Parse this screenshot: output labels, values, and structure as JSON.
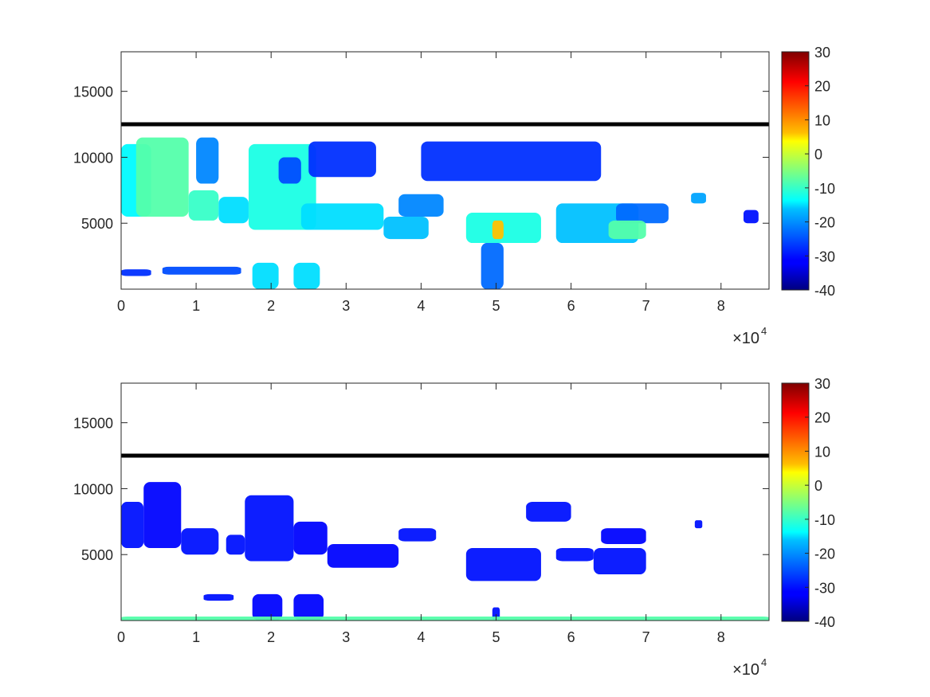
{
  "chart_data": [
    {
      "type": "heatmap",
      "panel": "top",
      "xlim": [
        0,
        86400
      ],
      "ylim": [
        0,
        18000
      ],
      "x_ticks": [
        0,
        10000,
        20000,
        30000,
        40000,
        50000,
        60000,
        70000,
        80000
      ],
      "x_tick_labels": [
        "0",
        "1",
        "2",
        "3",
        "4",
        "5",
        "6",
        "7",
        "8"
      ],
      "x_multiplier": {
        "base": "×10",
        "exponent": "4"
      },
      "y_ticks": [
        5000,
        10000,
        15000
      ],
      "y_tick_labels": [
        "5000",
        "10000",
        "15000"
      ],
      "reference_line_y": 12500,
      "colorbar": {
        "min": -40,
        "max": 30,
        "ticks": [
          "30",
          "20",
          "10",
          "0",
          "-10",
          "-20",
          "-30",
          "-40"
        ],
        "colormap": "jet"
      },
      "regions": [
        {
          "x": [
            0,
            4000
          ],
          "y": [
            5500,
            11000
          ],
          "value": -14
        },
        {
          "x": [
            2000,
            9000
          ],
          "y": [
            5500,
            11500
          ],
          "value": -8
        },
        {
          "x": [
            9000,
            13000
          ],
          "y": [
            5200,
            7500
          ],
          "value": -10
        },
        {
          "x": [
            10000,
            13000
          ],
          "y": [
            8000,
            11500
          ],
          "value": -22
        },
        {
          "x": [
            13000,
            17000
          ],
          "y": [
            5000,
            7000
          ],
          "value": -16
        },
        {
          "x": [
            17000,
            26000
          ],
          "y": [
            4500,
            11000
          ],
          "value": -12
        },
        {
          "x": [
            21000,
            24000
          ],
          "y": [
            8000,
            10000
          ],
          "value": -26
        },
        {
          "x": [
            25000,
            34000
          ],
          "y": [
            8500,
            11200
          ],
          "value": -28
        },
        {
          "x": [
            24000,
            35000
          ],
          "y": [
            4500,
            6500
          ],
          "value": -16
        },
        {
          "x": [
            35000,
            41000
          ],
          "y": [
            3800,
            5500
          ],
          "value": -18
        },
        {
          "x": [
            37000,
            43000
          ],
          "y": [
            5500,
            7200
          ],
          "value": -22
        },
        {
          "x": [
            40000,
            64000
          ],
          "y": [
            8200,
            11200
          ],
          "value": -28
        },
        {
          "x": [
            46000,
            56000
          ],
          "y": [
            3500,
            5800
          ],
          "value": -12
        },
        {
          "x": [
            48000,
            51000
          ],
          "y": [
            0,
            3500
          ],
          "value": -24
        },
        {
          "x": [
            49500,
            51000
          ],
          "y": [
            3800,
            5200
          ],
          "value": 8
        },
        {
          "x": [
            58000,
            69000
          ],
          "y": [
            3500,
            6500
          ],
          "value": -18
        },
        {
          "x": [
            66000,
            73000
          ],
          "y": [
            5000,
            6500
          ],
          "value": -24
        },
        {
          "x": [
            65000,
            70000
          ],
          "y": [
            3800,
            5200
          ],
          "value": -8
        },
        {
          "x": [
            0,
            4000
          ],
          "y": [
            1000,
            1500
          ],
          "value": -28
        },
        {
          "x": [
            5500,
            16000
          ],
          "y": [
            1100,
            1700
          ],
          "value": -26
        },
        {
          "x": [
            17500,
            21000
          ],
          "y": [
            0,
            2000
          ],
          "value": -16
        },
        {
          "x": [
            23000,
            26500
          ],
          "y": [
            0,
            2000
          ],
          "value": -16
        },
        {
          "x": [
            76000,
            78000
          ],
          "y": [
            6500,
            7300
          ],
          "value": -20
        },
        {
          "x": [
            83000,
            85000
          ],
          "y": [
            5000,
            6000
          ],
          "value": -30
        }
      ]
    },
    {
      "type": "heatmap",
      "panel": "bottom",
      "xlim": [
        0,
        86400
      ],
      "ylim": [
        0,
        18000
      ],
      "x_ticks": [
        0,
        10000,
        20000,
        30000,
        40000,
        50000,
        60000,
        70000,
        80000
      ],
      "x_tick_labels": [
        "0",
        "1",
        "2",
        "3",
        "4",
        "5",
        "6",
        "7",
        "8"
      ],
      "x_multiplier": {
        "base": "×10",
        "exponent": "4"
      },
      "y_ticks": [
        5000,
        10000,
        15000
      ],
      "y_tick_labels": [
        "5000",
        "10000",
        "15000"
      ],
      "reference_line_y": 12500,
      "colorbar": {
        "min": -40,
        "max": 30,
        "ticks": [
          "30",
          "20",
          "10",
          "0",
          "-10",
          "-20",
          "-30",
          "-40"
        ],
        "colormap": "jet"
      },
      "regions": [
        {
          "x": [
            0,
            3000
          ],
          "y": [
            5500,
            9000
          ],
          "value": -30
        },
        {
          "x": [
            3000,
            8000
          ],
          "y": [
            5500,
            10500
          ],
          "value": -31
        },
        {
          "x": [
            8000,
            13000
          ],
          "y": [
            5000,
            7000
          ],
          "value": -30
        },
        {
          "x": [
            14000,
            16500
          ],
          "y": [
            5000,
            6500
          ],
          "value": -30
        },
        {
          "x": [
            16500,
            23000
          ],
          "y": [
            4500,
            9500
          ],
          "value": -30
        },
        {
          "x": [
            23000,
            27500
          ],
          "y": [
            5000,
            7500
          ],
          "value": -31
        },
        {
          "x": [
            27500,
            37000
          ],
          "y": [
            4000,
            5800
          ],
          "value": -31
        },
        {
          "x": [
            37000,
            42000
          ],
          "y": [
            6000,
            7000
          ],
          "value": -30
        },
        {
          "x": [
            46000,
            56000
          ],
          "y": [
            3000,
            5500
          ],
          "value": -30
        },
        {
          "x": [
            54000,
            60000
          ],
          "y": [
            7500,
            9000
          ],
          "value": -30
        },
        {
          "x": [
            58000,
            63000
          ],
          "y": [
            4500,
            5500
          ],
          "value": -30
        },
        {
          "x": [
            63000,
            70000
          ],
          "y": [
            3500,
            5500
          ],
          "value": -30
        },
        {
          "x": [
            64000,
            70000
          ],
          "y": [
            5800,
            7000
          ],
          "value": -31
        },
        {
          "x": [
            11000,
            15000
          ],
          "y": [
            1500,
            2000
          ],
          "value": -30
        },
        {
          "x": [
            17500,
            21500
          ],
          "y": [
            0,
            2000
          ],
          "value": -31
        },
        {
          "x": [
            23000,
            27000
          ],
          "y": [
            0,
            2000
          ],
          "value": -31
        },
        {
          "x": [
            49500,
            50500
          ],
          "y": [
            0,
            1000
          ],
          "value": -30
        },
        {
          "x": [
            76500,
            77500
          ],
          "y": [
            7000,
            7600
          ],
          "value": -30
        },
        {
          "x": [
            0,
            86400
          ],
          "y": [
            0,
            300
          ],
          "value": -8
        }
      ]
    }
  ]
}
